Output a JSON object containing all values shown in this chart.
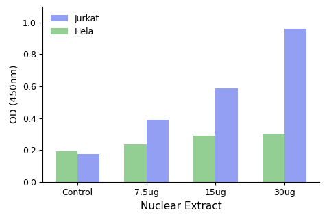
{
  "categories": [
    "Control",
    "7.5ug",
    "15ug",
    "30ug"
  ],
  "series": [
    {
      "label": "Jurkat",
      "values": [
        0.175,
        0.39,
        0.585,
        0.96
      ],
      "color": "#6677ee"
    },
    {
      "label": "Hela",
      "values": [
        0.19,
        0.235,
        0.29,
        0.3
      ],
      "color": "#66bb66"
    }
  ],
  "xlabel": "Nuclear Extract",
  "ylabel": "OD (450nm)",
  "ylim": [
    0,
    1.1
  ],
  "yticks": [
    0.0,
    0.2,
    0.4,
    0.6,
    0.8,
    1.0
  ],
  "bar_width": 0.32,
  "background_color": "#ffffff",
  "figsize": [
    4.8,
    3.2
  ],
  "dpi": 100
}
